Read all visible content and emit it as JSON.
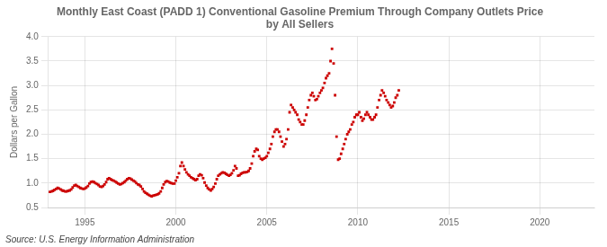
{
  "chart_data": {
    "type": "scatter",
    "title": "Monthly East Coast (PADD 1) Conventional Gasoline Premium Through Company Outlets Price\nby All Sellers",
    "ylabel": "Dollars per Gallon",
    "annotations": [
      "Source: U.S. Energy Information Administration"
    ],
    "color": "#cc0000",
    "marker": "square",
    "grid": true,
    "xlim": [
      1993.0,
      2023.0
    ],
    "ylim": [
      0.5,
      4.0
    ],
    "xticks": [
      1995,
      2000,
      2005,
      2010,
      2015,
      2020
    ],
    "yticks": [
      0.5,
      {
        "value": 1.0,
        "label": "1.0"
      },
      1.5,
      {
        "value": 2.0,
        "label": "2.0"
      },
      2.5,
      {
        "value": 3.0,
        "label": "3.0"
      },
      3.5,
      {
        "value": 4.0,
        "label": "4.0"
      }
    ],
    "x": [
      1993.08,
      1993.17,
      1993.25,
      1993.33,
      1993.42,
      1993.5,
      1993.58,
      1993.67,
      1993.75,
      1993.83,
      1993.92,
      1994.0,
      1994.08,
      1994.17,
      1994.25,
      1994.33,
      1994.42,
      1994.5,
      1994.58,
      1994.67,
      1994.75,
      1994.83,
      1994.92,
      1995.0,
      1995.08,
      1995.17,
      1995.25,
      1995.33,
      1995.42,
      1995.5,
      1995.58,
      1995.67,
      1995.75,
      1995.83,
      1995.92,
      1996.0,
      1996.08,
      1996.17,
      1996.25,
      1996.33,
      1996.42,
      1996.5,
      1996.58,
      1996.67,
      1996.75,
      1996.83,
      1996.92,
      1997.0,
      1997.08,
      1997.17,
      1997.25,
      1997.33,
      1997.42,
      1997.5,
      1997.58,
      1997.67,
      1997.75,
      1997.83,
      1997.92,
      1998.0,
      1998.08,
      1998.17,
      1998.25,
      1998.33,
      1998.42,
      1998.5,
      1998.58,
      1998.67,
      1998.75,
      1998.83,
      1998.92,
      1999.0,
      1999.08,
      1999.17,
      1999.25,
      1999.33,
      1999.42,
      1999.5,
      1999.58,
      1999.67,
      1999.75,
      1999.83,
      1999.92,
      2000.0,
      2000.08,
      2000.17,
      2000.25,
      2000.33,
      2000.42,
      2000.5,
      2000.58,
      2000.67,
      2000.75,
      2000.83,
      2000.92,
      2001.0,
      2001.08,
      2001.17,
      2001.25,
      2001.33,
      2001.42,
      2001.5,
      2001.58,
      2001.67,
      2001.75,
      2001.83,
      2001.92,
      2002.0,
      2002.08,
      2002.17,
      2002.25,
      2002.33,
      2002.42,
      2002.5,
      2002.58,
      2002.67,
      2002.75,
      2002.83,
      2002.92,
      2003.0,
      2003.08,
      2003.17,
      2003.25,
      2003.33,
      2003.42,
      2003.5,
      2003.58,
      2003.67,
      2003.75,
      2003.83,
      2003.92,
      2004.0,
      2004.08,
      2004.17,
      2004.25,
      2004.33,
      2004.42,
      2004.5,
      2004.58,
      2004.67,
      2004.75,
      2004.83,
      2004.92,
      2005.0,
      2005.08,
      2005.17,
      2005.25,
      2005.33,
      2005.42,
      2005.5,
      2005.58,
      2005.67,
      2005.75,
      2005.83,
      2005.92,
      2006.0,
      2006.08,
      2006.17,
      2006.25,
      2006.33,
      2006.42,
      2006.5,
      2006.58,
      2006.67,
      2006.75,
      2006.83,
      2006.92,
      2007.0,
      2007.08,
      2007.17,
      2007.25,
      2007.33,
      2007.42,
      2007.5,
      2007.58,
      2007.67,
      2007.75,
      2007.83,
      2007.92,
      2008.0,
      2008.08,
      2008.17,
      2008.25,
      2008.33,
      2008.42,
      2008.5,
      2008.58,
      2008.67,
      2008.75,
      2008.83,
      2008.92,
      2009.0,
      2009.08,
      2009.17,
      2009.25,
      2009.33,
      2009.42,
      2009.5,
      2009.58,
      2009.67,
      2009.75,
      2009.83,
      2009.92,
      2010.0,
      2010.08,
      2010.17,
      2010.25,
      2010.33,
      2010.42,
      2010.5,
      2010.58,
      2010.67,
      2010.75,
      2010.83,
      2010.92,
      2011.0,
      2011.08,
      2011.17,
      2011.25,
      2011.33,
      2011.42,
      2011.5,
      2011.58,
      2011.67,
      2011.75,
      2011.83,
      2011.92,
      2012.0,
      2012.08,
      2012.17,
      2012.25
    ],
    "values": [
      0.82,
      0.83,
      0.84,
      0.86,
      0.88,
      0.9,
      0.89,
      0.87,
      0.85,
      0.84,
      0.83,
      0.83,
      0.84,
      0.85,
      0.87,
      0.91,
      0.95,
      0.96,
      0.94,
      0.92,
      0.9,
      0.89,
      0.88,
      0.89,
      0.91,
      0.94,
      0.99,
      1.02,
      1.03,
      1.02,
      1.0,
      0.98,
      0.96,
      0.93,
      0.92,
      0.94,
      0.97,
      1.02,
      1.08,
      1.1,
      1.08,
      1.06,
      1.05,
      1.03,
      1.01,
      0.99,
      0.97,
      0.98,
      1.0,
      1.02,
      1.05,
      1.08,
      1.1,
      1.09,
      1.07,
      1.05,
      1.03,
      1.0,
      0.97,
      0.96,
      0.93,
      0.88,
      0.83,
      0.8,
      0.78,
      0.76,
      0.74,
      0.73,
      0.74,
      0.75,
      0.76,
      0.77,
      0.79,
      0.83,
      0.9,
      0.97,
      1.02,
      1.04,
      1.03,
      1.01,
      1.0,
      0.99,
      0.99,
      1.05,
      1.12,
      1.2,
      1.35,
      1.42,
      1.35,
      1.28,
      1.22,
      1.18,
      1.15,
      1.12,
      1.1,
      1.08,
      1.06,
      1.08,
      1.15,
      1.18,
      1.16,
      1.1,
      1.01,
      0.95,
      0.9,
      0.87,
      0.85,
      0.88,
      0.92,
      0.99,
      1.08,
      1.15,
      1.18,
      1.2,
      1.22,
      1.21,
      1.19,
      1.17,
      1.15,
      1.17,
      1.2,
      1.26,
      1.35,
      1.3,
      1.15,
      1.16,
      1.19,
      1.21,
      1.22,
      1.22,
      1.23,
      1.25,
      1.3,
      1.4,
      1.55,
      1.65,
      1.7,
      1.68,
      1.55,
      1.5,
      1.48,
      1.5,
      1.52,
      1.55,
      1.62,
      1.7,
      1.8,
      1.95,
      2.05,
      2.1,
      2.1,
      2.05,
      1.95,
      1.85,
      1.75,
      1.8,
      1.9,
      2.1,
      2.45,
      2.6,
      2.55,
      2.5,
      2.45,
      2.4,
      2.3,
      2.25,
      2.2,
      2.2,
      2.28,
      2.4,
      2.55,
      2.7,
      2.8,
      2.85,
      2.78,
      2.7,
      2.72,
      2.78,
      2.85,
      2.9,
      2.95,
      3.05,
      3.15,
      3.2,
      3.25,
      3.5,
      3.75,
      3.45,
      2.8,
      1.95,
      1.48,
      1.5,
      1.6,
      1.7,
      1.8,
      1.9,
      2.0,
      2.05,
      2.1,
      2.2,
      2.25,
      2.35,
      2.4,
      2.4,
      2.45,
      2.35,
      2.28,
      2.32,
      2.4,
      2.45,
      2.4,
      2.35,
      2.3,
      2.3,
      2.35,
      2.4,
      2.55,
      2.7,
      2.8,
      2.9,
      2.85,
      2.78,
      2.7,
      2.65,
      2.6,
      2.55,
      2.58,
      2.65,
      2.75,
      2.8,
      2.9
    ]
  }
}
